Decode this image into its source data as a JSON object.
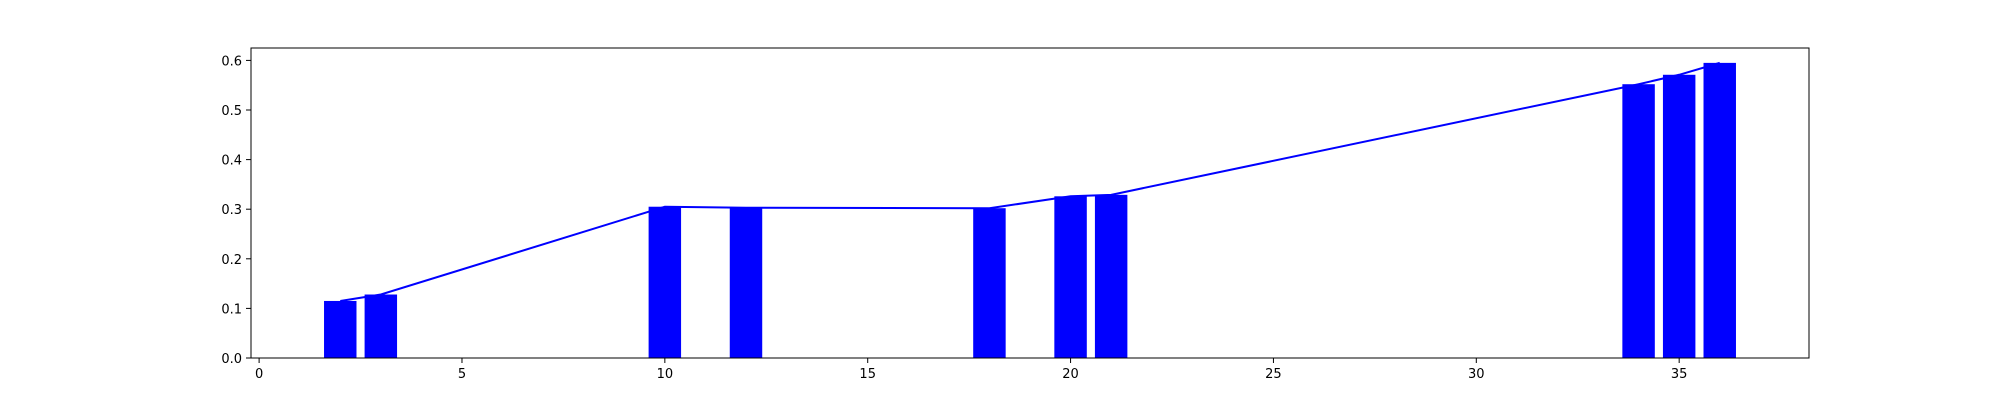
{
  "chart_data": {
    "type": "bar",
    "title": "",
    "xlabel": "",
    "ylabel": "",
    "xlim": [
      -0.2,
      38.2
    ],
    "ylim": [
      0,
      0.625
    ],
    "xticks": [
      0,
      5,
      10,
      15,
      20,
      25,
      30,
      35
    ],
    "yticks": [
      0.0,
      0.1,
      0.2,
      0.3,
      0.4,
      0.5,
      0.6
    ],
    "ytick_labels": [
      "0.0",
      "0.1",
      "0.2",
      "0.3",
      "0.4",
      "0.5",
      "0.6"
    ],
    "grid": false,
    "bar_width": 0.8,
    "bar_color": "#0000ff",
    "line_color": "#0000ff",
    "x": [
      2,
      3,
      10,
      12,
      18,
      20,
      21,
      34,
      35,
      36
    ],
    "values": [
      0.115,
      0.128,
      0.305,
      0.303,
      0.302,
      0.326,
      0.329,
      0.552,
      0.571,
      0.595
    ]
  }
}
